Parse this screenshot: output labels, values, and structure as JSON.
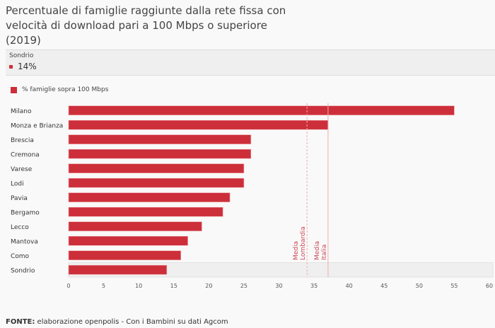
{
  "chart_data": {
    "type": "bar",
    "orientation": "horizontal",
    "title": "Percentuale di famiglie raggiunte dalla rete fissa con velocità di download pari a 100 Mbps o superiore (2019)",
    "categories": [
      "Milano",
      "Monza e Brianza",
      "Brescia",
      "Cremona",
      "Varese",
      "Lodi",
      "Pavia",
      "Bergamo",
      "Lecco",
      "Mantova",
      "Como",
      "Sondrio"
    ],
    "series": [
      {
        "name": "% famiglie sopra 100 Mbps",
        "values": [
          55,
          37,
          26,
          26,
          25,
          25,
          23,
          22,
          19,
          17,
          16,
          14
        ]
      }
    ],
    "xlim": [
      0,
      60
    ],
    "xticks": [
      0,
      5,
      10,
      15,
      20,
      25,
      30,
      35,
      40,
      45,
      50,
      55,
      60
    ],
    "highlighted": "Sondrio",
    "reference_lines": [
      {
        "label1": "Media",
        "label2": "Lombardia",
        "value": 34,
        "style": "dashed"
      },
      {
        "label1": "Media",
        "label2": "Italia",
        "value": 37,
        "style": "solid"
      }
    ],
    "legend": "top-left",
    "color": "#cc2f3a"
  },
  "tooltip": {
    "name": "Sondrio",
    "value": "14%"
  },
  "footer": {
    "label": "FONTE:",
    "text": " elaborazione openpolis - Con i Bambini su dati Agcom"
  }
}
